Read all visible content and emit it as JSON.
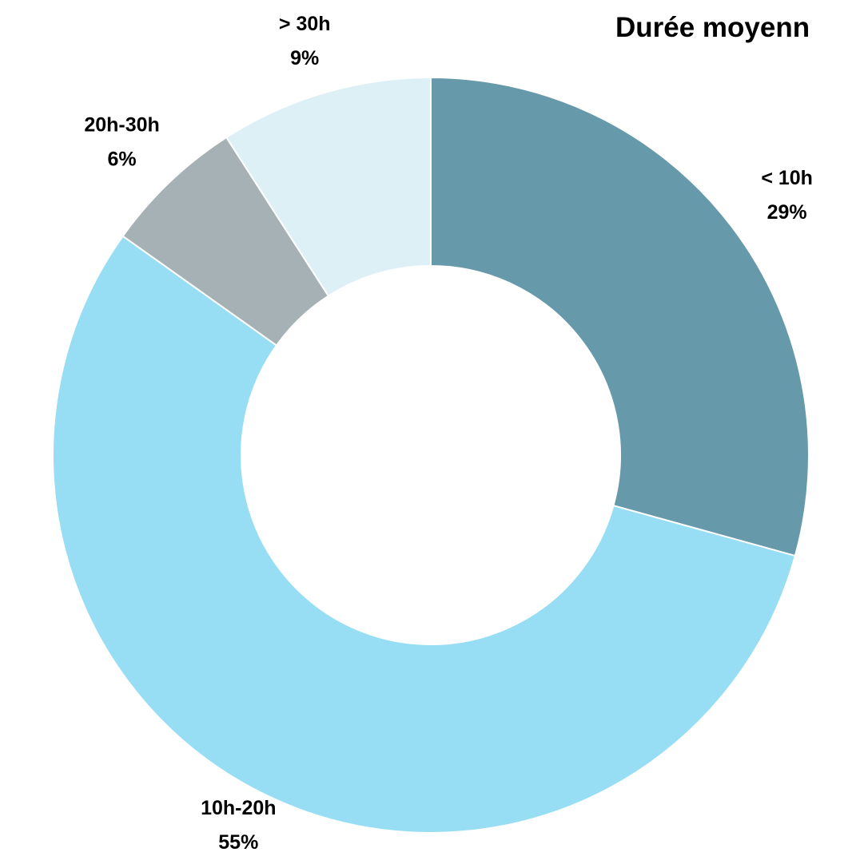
{
  "chart_data": {
    "type": "donut",
    "title": "Durée moyenn",
    "categories": [
      "< 10h",
      "10h-20h",
      "20h-30h",
      "> 30h"
    ],
    "values": [
      29,
      55,
      6,
      9
    ],
    "value_labels": [
      "29%",
      "55%",
      "6%",
      "9%"
    ],
    "colors": [
      "#6699aa",
      "#97ddf4",
      "#a5b1b4",
      "#dcf0f6"
    ]
  }
}
